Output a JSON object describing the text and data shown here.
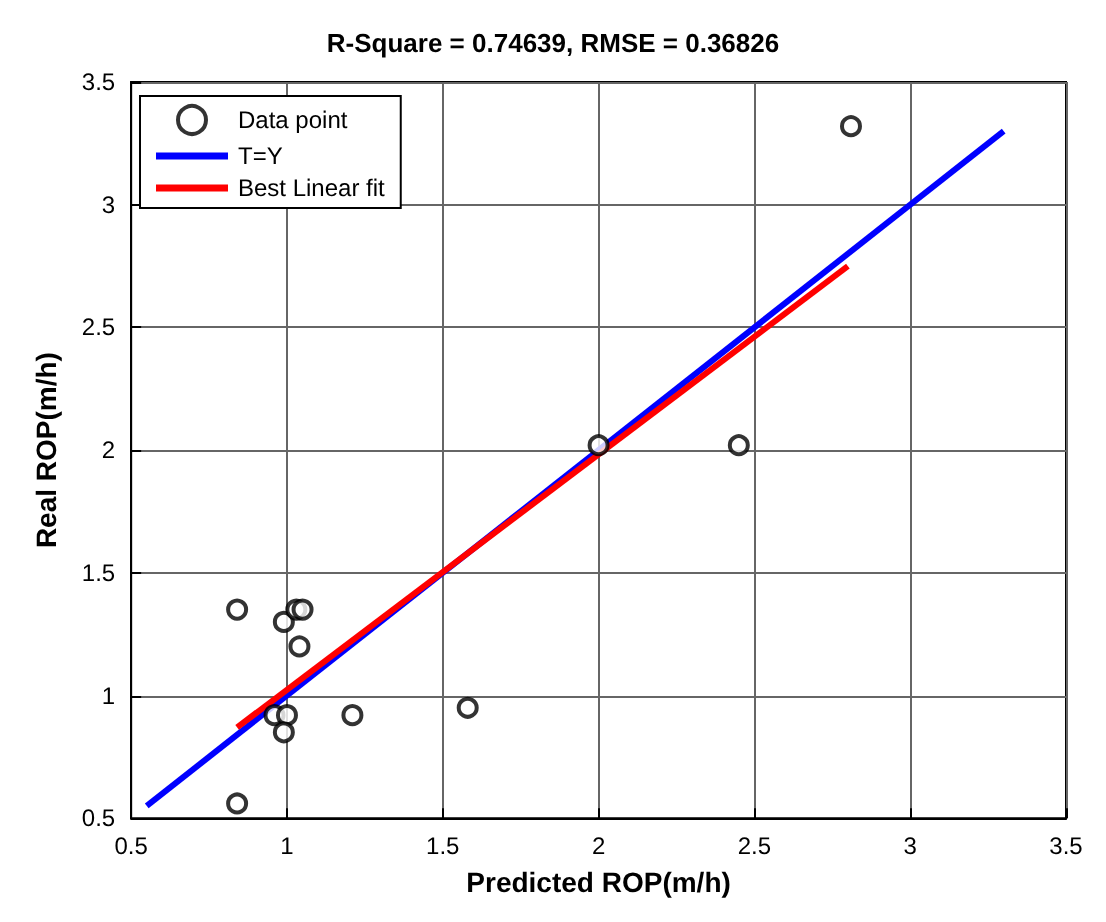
{
  "chart_data": {
    "type": "scatter",
    "title": "R-Square = 0.74639, RMSE = 0.36826",
    "xlabel": "Predicted ROP(m/h)",
    "ylabel": "Real ROP(m/h)",
    "xlim": [
      0.5,
      3.5
    ],
    "ylim": [
      0.5,
      3.5
    ],
    "xticks": [
      0.5,
      1,
      1.5,
      2,
      2.5,
      3,
      3.5
    ],
    "yticks": [
      0.5,
      1,
      1.5,
      2,
      2.5,
      3,
      3.5
    ],
    "grid": true,
    "legend": "top left",
    "series": [
      {
        "name": "Data point",
        "marker": "circle",
        "color": "#000000",
        "x": [
          0.84,
          0.99,
          1.03,
          1.05,
          1.04,
          0.96,
          1.0,
          0.99,
          1.21,
          1.58,
          0.84,
          2.0,
          2.45,
          2.81
        ],
        "values": [
          1.35,
          1.3,
          1.35,
          1.35,
          1.2,
          0.92,
          0.92,
          0.85,
          0.92,
          0.95,
          0.56,
          2.02,
          2.02,
          3.32
        ]
      },
      {
        "name": "T=Y",
        "type": "line",
        "marker": "none",
        "color": "#0000ff",
        "x": [
          0.55,
          3.3
        ],
        "values": [
          0.55,
          3.3
        ]
      },
      {
        "name": "Best Linear fit",
        "type": "line",
        "marker": "none",
        "color": "#ff0000",
        "x": [
          0.84,
          2.8
        ],
        "values": [
          0.87,
          2.75
        ]
      }
    ]
  }
}
